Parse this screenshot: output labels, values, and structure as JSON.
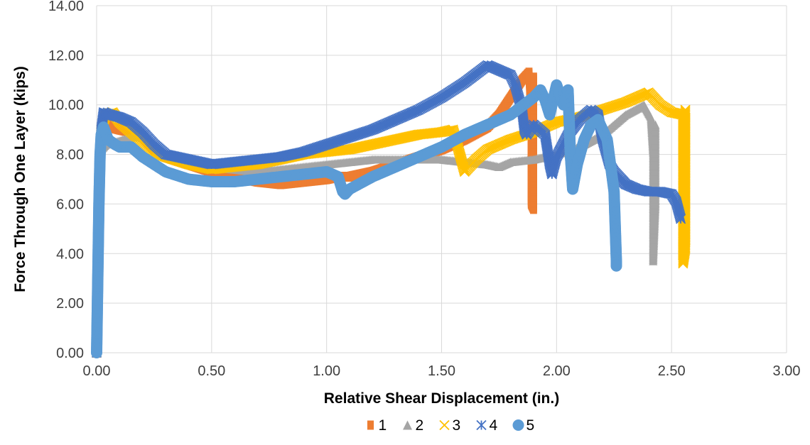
{
  "chart_data": {
    "type": "scatter",
    "title": "",
    "xlabel": "Relative Shear Displacement (in.)",
    "ylabel": "Force Through One Layer (kips)",
    "xlim": [
      0,
      3
    ],
    "ylim": [
      0,
      14
    ],
    "x_ticks": [
      "0.00",
      "0.50",
      "1.00",
      "1.50",
      "2.00",
      "2.50",
      "3.00"
    ],
    "y_ticks": [
      "0.00",
      "2.00",
      "4.00",
      "6.00",
      "8.00",
      "10.00",
      "12.00",
      "14.00"
    ],
    "grid": true,
    "legend_position": "bottom",
    "series": [
      {
        "name": "1",
        "marker": "square",
        "color": "#ED7D31",
        "points": [
          [
            0,
            0
          ],
          [
            0.005,
            3
          ],
          [
            0.01,
            6
          ],
          [
            0.02,
            8.6
          ],
          [
            0.04,
            9.4
          ],
          [
            0.06,
            9.1
          ],
          [
            0.1,
            9.0
          ],
          [
            0.15,
            8.9
          ],
          [
            0.2,
            8.7
          ],
          [
            0.25,
            8.2
          ],
          [
            0.3,
            7.9
          ],
          [
            0.4,
            7.6
          ],
          [
            0.5,
            7.3
          ],
          [
            0.6,
            7.1
          ],
          [
            0.7,
            6.9
          ],
          [
            0.8,
            6.8
          ],
          [
            0.9,
            6.9
          ],
          [
            1.0,
            7.0
          ],
          [
            1.05,
            7.1
          ],
          [
            1.1,
            7.1
          ],
          [
            1.2,
            7.3
          ],
          [
            1.3,
            7.6
          ],
          [
            1.4,
            7.9
          ],
          [
            1.5,
            8.2
          ],
          [
            1.6,
            8.6
          ],
          [
            1.7,
            9.1
          ],
          [
            1.75,
            9.6
          ],
          [
            1.8,
            10.3
          ],
          [
            1.85,
            11.0
          ],
          [
            1.88,
            11.3
          ],
          [
            1.89,
            9.0
          ],
          [
            1.89,
            6.0
          ],
          [
            1.9,
            5.8
          ],
          [
            1.9,
            8.0
          ],
          [
            1.9,
            11.1
          ]
        ]
      },
      {
        "name": "2",
        "marker": "triangle",
        "color": "#A5A5A5",
        "points": [
          [
            0,
            0
          ],
          [
            0.005,
            3
          ],
          [
            0.01,
            6
          ],
          [
            0.02,
            8.2
          ],
          [
            0.04,
            8.4
          ],
          [
            0.08,
            8.5
          ],
          [
            0.15,
            8.7
          ],
          [
            0.2,
            8.7
          ],
          [
            0.25,
            8.4
          ],
          [
            0.3,
            8.0
          ],
          [
            0.4,
            7.7
          ],
          [
            0.5,
            7.5
          ],
          [
            0.6,
            7.4
          ],
          [
            0.7,
            7.3
          ],
          [
            0.8,
            7.4
          ],
          [
            0.9,
            7.5
          ],
          [
            1.0,
            7.6
          ],
          [
            1.1,
            7.7
          ],
          [
            1.2,
            7.8
          ],
          [
            1.3,
            7.8
          ],
          [
            1.4,
            7.8
          ],
          [
            1.5,
            7.8
          ],
          [
            1.6,
            7.7
          ],
          [
            1.7,
            7.6
          ],
          [
            1.75,
            7.5
          ],
          [
            1.8,
            7.7
          ],
          [
            1.9,
            7.8
          ],
          [
            2.0,
            8.0
          ],
          [
            2.1,
            8.3
          ],
          [
            2.2,
            8.8
          ],
          [
            2.3,
            9.6
          ],
          [
            2.38,
            10.0
          ],
          [
            2.41,
            9.5
          ],
          [
            2.42,
            8.0
          ],
          [
            2.42,
            5.5
          ],
          [
            2.42,
            3.7
          ],
          [
            2.43,
            6.0
          ],
          [
            2.43,
            9.2
          ]
        ]
      },
      {
        "name": "3",
        "marker": "x",
        "color": "#FFC000",
        "points": [
          [
            0,
            0
          ],
          [
            0.005,
            3
          ],
          [
            0.01,
            6
          ],
          [
            0.02,
            9.0
          ],
          [
            0.04,
            9.6
          ],
          [
            0.07,
            9.7
          ],
          [
            0.1,
            9.3
          ],
          [
            0.15,
            8.9
          ],
          [
            0.2,
            8.5
          ],
          [
            0.25,
            8.1
          ],
          [
            0.3,
            7.9
          ],
          [
            0.4,
            7.6
          ],
          [
            0.5,
            7.4
          ],
          [
            0.6,
            7.5
          ],
          [
            0.7,
            7.6
          ],
          [
            0.8,
            7.8
          ],
          [
            0.9,
            8.0
          ],
          [
            1.0,
            8.1
          ],
          [
            1.1,
            8.2
          ],
          [
            1.2,
            8.4
          ],
          [
            1.3,
            8.6
          ],
          [
            1.4,
            8.8
          ],
          [
            1.5,
            8.9
          ],
          [
            1.55,
            9.0
          ],
          [
            1.6,
            7.3
          ],
          [
            1.65,
            7.8
          ],
          [
            1.7,
            8.2
          ],
          [
            1.8,
            8.6
          ],
          [
            1.9,
            8.9
          ],
          [
            2.0,
            9.3
          ],
          [
            2.1,
            9.5
          ],
          [
            2.2,
            9.8
          ],
          [
            2.3,
            10.1
          ],
          [
            2.4,
            10.5
          ],
          [
            2.45,
            10.0
          ],
          [
            2.5,
            9.7
          ],
          [
            2.55,
            9.6
          ],
          [
            2.55,
            8.0
          ],
          [
            2.55,
            4.5
          ],
          [
            2.55,
            3.6
          ],
          [
            2.56,
            4.2
          ],
          [
            2.56,
            9.8
          ]
        ]
      },
      {
        "name": "4",
        "marker": "star",
        "color": "#4472C4",
        "points": [
          [
            0,
            0
          ],
          [
            0.005,
            3
          ],
          [
            0.01,
            6
          ],
          [
            0.02,
            9.0
          ],
          [
            0.03,
            9.7
          ],
          [
            0.06,
            9.6
          ],
          [
            0.1,
            9.5
          ],
          [
            0.15,
            9.3
          ],
          [
            0.2,
            8.9
          ],
          [
            0.25,
            8.4
          ],
          [
            0.3,
            8.0
          ],
          [
            0.4,
            7.8
          ],
          [
            0.5,
            7.6
          ],
          [
            0.6,
            7.7
          ],
          [
            0.7,
            7.8
          ],
          [
            0.8,
            7.9
          ],
          [
            0.9,
            8.1
          ],
          [
            1.0,
            8.4
          ],
          [
            1.1,
            8.7
          ],
          [
            1.2,
            9.0
          ],
          [
            1.3,
            9.4
          ],
          [
            1.4,
            9.8
          ],
          [
            1.5,
            10.3
          ],
          [
            1.6,
            10.9
          ],
          [
            1.7,
            11.6
          ],
          [
            1.75,
            11.4
          ],
          [
            1.8,
            11.2
          ],
          [
            1.82,
            10.8
          ],
          [
            1.85,
            9.8
          ],
          [
            1.86,
            9.0
          ],
          [
            1.87,
            8.8
          ],
          [
            1.9,
            9.2
          ],
          [
            1.95,
            8.8
          ],
          [
            1.97,
            7.6
          ],
          [
            1.98,
            7.2
          ],
          [
            2.0,
            7.9
          ],
          [
            2.05,
            8.8
          ],
          [
            2.1,
            9.4
          ],
          [
            2.15,
            9.8
          ],
          [
            2.18,
            9.6
          ],
          [
            2.2,
            8.6
          ],
          [
            2.23,
            7.6
          ],
          [
            2.25,
            7.3
          ],
          [
            2.28,
            7.0
          ],
          [
            2.3,
            6.8
          ],
          [
            2.35,
            6.6
          ],
          [
            2.4,
            6.5
          ],
          [
            2.45,
            6.5
          ],
          [
            2.5,
            6.4
          ],
          [
            2.52,
            6.1
          ],
          [
            2.54,
            5.4
          ]
        ]
      },
      {
        "name": "5",
        "marker": "circle",
        "color": "#5B9BD5",
        "points": [
          [
            0,
            0
          ],
          [
            0.005,
            3
          ],
          [
            0.01,
            6
          ],
          [
            0.015,
            8.0
          ],
          [
            0.02,
            8.8
          ],
          [
            0.03,
            9.1
          ],
          [
            0.05,
            8.6
          ],
          [
            0.08,
            8.4
          ],
          [
            0.1,
            8.3
          ],
          [
            0.15,
            8.3
          ],
          [
            0.2,
            7.9
          ],
          [
            0.25,
            7.6
          ],
          [
            0.3,
            7.3
          ],
          [
            0.4,
            7.0
          ],
          [
            0.5,
            6.9
          ],
          [
            0.6,
            6.9
          ],
          [
            0.7,
            7.0
          ],
          [
            0.8,
            7.1
          ],
          [
            0.9,
            7.2
          ],
          [
            1.0,
            7.3
          ],
          [
            1.05,
            7.1
          ],
          [
            1.07,
            6.5
          ],
          [
            1.08,
            6.4
          ],
          [
            1.1,
            6.6
          ],
          [
            1.2,
            7.1
          ],
          [
            1.3,
            7.5
          ],
          [
            1.4,
            7.9
          ],
          [
            1.5,
            8.3
          ],
          [
            1.6,
            8.8
          ],
          [
            1.7,
            9.2
          ],
          [
            1.8,
            9.6
          ],
          [
            1.9,
            10.3
          ],
          [
            1.93,
            10.6
          ],
          [
            1.95,
            10.2
          ],
          [
            1.97,
            9.6
          ],
          [
            2.0,
            10.8
          ],
          [
            2.03,
            10.0
          ],
          [
            2.05,
            10.6
          ],
          [
            2.06,
            8.0
          ],
          [
            2.07,
            6.6
          ],
          [
            2.09,
            7.6
          ],
          [
            2.12,
            8.6
          ],
          [
            2.15,
            9.2
          ],
          [
            2.18,
            9.4
          ],
          [
            2.2,
            9.0
          ],
          [
            2.22,
            8.6
          ],
          [
            2.25,
            6.5
          ],
          [
            2.26,
            3.7
          ],
          [
            2.26,
            3.5
          ]
        ]
      }
    ]
  }
}
